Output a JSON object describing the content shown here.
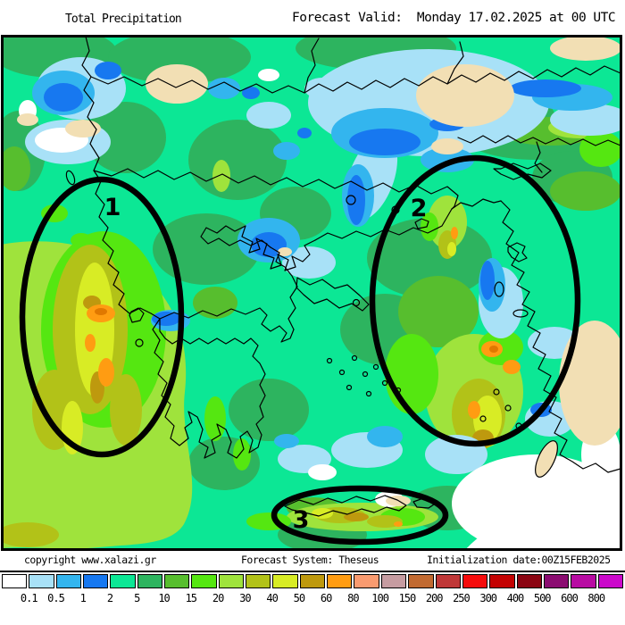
{
  "header": {
    "left_title": "Total Precipitation",
    "right_title": "Forecast Valid:  Monday 17.02.2025 at 00 UTC"
  },
  "annotations": {
    "region1": "1",
    "region2": "2",
    "region3": "3"
  },
  "footer": {
    "copyright": "copyright www.xalazi.gr",
    "forecast_system": "Forecast System: Theseus",
    "initialization": "Initialization date:00Z15FEB2025"
  },
  "colorbar": {
    "labels": [
      "0.1",
      "0.5",
      "1",
      "2",
      "5",
      "10",
      "15",
      "20",
      "30",
      "40",
      "50",
      "60",
      "80",
      "100",
      "150",
      "200",
      "250",
      "300",
      "400",
      "500",
      "600",
      "800"
    ],
    "colors": [
      "#FFFFFF",
      "#A8E1F7",
      "#33B5EE",
      "#1778F0",
      "#0CE795",
      "#2DB45F",
      "#57BE2E",
      "#55E711",
      "#9FE33C",
      "#B2C218",
      "#D8EC25",
      "#BE990E",
      "#FF9C12",
      "#F99B70",
      "#C69CA1",
      "#C16A31",
      "#BF3737",
      "#F60C0C",
      "#C40202",
      "#8B0512",
      "#8B0C71",
      "#B80CA3",
      "#CB09CB"
    ]
  },
  "map_palette": {
    "base_sea_low": "#0CE795",
    "land_dry": "#F2DFB4",
    "annotation_color": "#000000"
  }
}
